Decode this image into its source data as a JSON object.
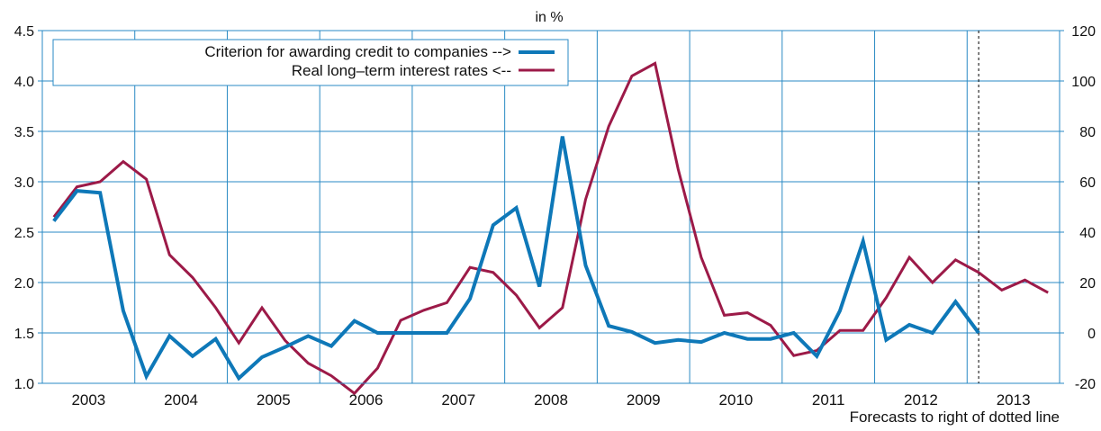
{
  "chart_data": {
    "type": "line",
    "unit_label": "in %",
    "footnote": "Forecasts to right of dotted line",
    "categories": [
      "2003",
      "2004",
      "2005",
      "2006",
      "2007",
      "2008",
      "2009",
      "2010",
      "2011",
      "2012",
      "2013"
    ],
    "left_axis": {
      "ylim": [
        1.0,
        4.5
      ],
      "ticks": [
        "1.0",
        "1.5",
        "2.0",
        "2.5",
        "3.0",
        "3.5",
        "4.0",
        "4.5"
      ]
    },
    "right_axis": {
      "ylim": [
        -20,
        120
      ],
      "ticks": [
        "-20",
        "0",
        "20",
        "40",
        "60",
        "80",
        "100",
        "120"
      ]
    },
    "forecast_start_x": 2012.625,
    "grid": true,
    "legend_position": "top-left",
    "colors": {
      "blue": "#0e78b8",
      "red": "#9c1a48",
      "grid": "#2a8ac4"
    },
    "series": [
      {
        "name": "Criterion for awarding credit to companies -->",
        "axis": "left",
        "color": "#0e78b8",
        "x": [
          2002.625,
          2002.875,
          2003.125,
          2003.375,
          2003.625,
          2003.875,
          2004.125,
          2004.375,
          2004.625,
          2004.875,
          2005.125,
          2005.375,
          2005.625,
          2005.875,
          2006.125,
          2006.375,
          2006.625,
          2006.875,
          2007.125,
          2007.375,
          2007.625,
          2007.875,
          2008.125,
          2008.375,
          2008.625,
          2008.875,
          2009.125,
          2009.375,
          2009.625,
          2009.875,
          2010.125,
          2010.375,
          2010.625,
          2010.875,
          2011.125,
          2011.375,
          2011.625,
          2011.875,
          2012.125,
          2012.375,
          2012.625
        ],
        "values": [
          2.61,
          2.91,
          2.89,
          1.72,
          1.07,
          1.47,
          1.27,
          1.44,
          1.05,
          1.26,
          1.36,
          1.47,
          1.37,
          1.62,
          1.5,
          1.5,
          1.5,
          1.5,
          1.84,
          2.57,
          2.74,
          1.96,
          3.45,
          2.17,
          1.57,
          1.51,
          1.4,
          1.43,
          1.41,
          1.5,
          1.44,
          1.44,
          1.5,
          1.27,
          1.72,
          2.41,
          1.43,
          1.58,
          1.5,
          1.81,
          1.5
        ]
      },
      {
        "name": "Real long–term interest rates <--",
        "axis": "right",
        "color": "#9c1a48",
        "x": [
          2002.625,
          2002.875,
          2003.125,
          2003.375,
          2003.625,
          2003.875,
          2004.125,
          2004.375,
          2004.625,
          2004.875,
          2005.125,
          2005.375,
          2005.625,
          2005.875,
          2006.125,
          2006.375,
          2006.625,
          2006.875,
          2007.125,
          2007.375,
          2007.625,
          2007.875,
          2008.125,
          2008.375,
          2008.625,
          2008.875,
          2009.125,
          2009.375,
          2009.625,
          2009.875,
          2010.125,
          2010.375,
          2010.625,
          2010.875,
          2011.125,
          2011.375,
          2011.625,
          2011.875,
          2012.125,
          2012.375,
          2012.625,
          2012.875,
          2013.125,
          2013.375
        ],
        "values": [
          46,
          58,
          60,
          68,
          61,
          31,
          22,
          10,
          -4,
          10,
          -3,
          -12,
          -17,
          -24,
          -14,
          5,
          9,
          12,
          26,
          24,
          15,
          2,
          10,
          53,
          82,
          102,
          107,
          65,
          30,
          7,
          8,
          3,
          -9,
          -7,
          1,
          1,
          14,
          30,
          20,
          29,
          24,
          17,
          21,
          16
        ]
      }
    ]
  }
}
